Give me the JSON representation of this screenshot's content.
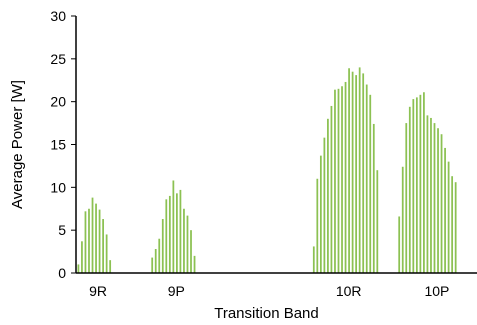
{
  "chart_data": {
    "type": "bar",
    "xlabel": "Transition Band",
    "ylabel": "Average Power [W]",
    "ylim": [
      0,
      30
    ],
    "yticks": [
      0,
      5,
      10,
      15,
      20,
      25,
      30
    ],
    "x_range": [
      0,
      100
    ],
    "bar_color": "#8cc152",
    "grid": false,
    "legend": "none",
    "category_labels": [
      {
        "label": "9R",
        "x": 5.5
      },
      {
        "label": "9P",
        "x": 25
      },
      {
        "label": "10R",
        "x": 68
      },
      {
        "label": "10P",
        "x": 90
      }
    ],
    "groups": [
      {
        "name": "9R",
        "x_start": 0.6,
        "x_step": 0.88,
        "values": [
          1.0,
          3.7,
          7.2,
          7.5,
          8.8,
          8.1,
          7.4,
          6.3,
          4.5,
          1.5
        ]
      },
      {
        "name": "9P",
        "x_start": 19.0,
        "x_step": 0.88,
        "values": [
          1.8,
          2.8,
          4.0,
          6.3,
          8.6,
          9.0,
          10.8,
          9.3,
          9.7,
          7.5,
          6.7,
          5.0,
          2.0
        ]
      },
      {
        "name": "10R",
        "x_start": 59.3,
        "x_step": 0.88,
        "values": [
          3.1,
          11.0,
          13.7,
          15.8,
          18.0,
          19.5,
          21.4,
          21.5,
          21.8,
          22.3,
          23.9,
          23.5,
          23.1,
          24.0,
          23.3,
          22.0,
          20.8,
          17.4,
          12.0
        ]
      },
      {
        "name": "10P",
        "x_start": 80.6,
        "x_step": 0.88,
        "values": [
          6.6,
          12.4,
          17.5,
          19.4,
          20.3,
          20.5,
          20.8,
          21.1,
          18.4,
          18.1,
          17.5,
          16.9,
          16.2,
          14.6,
          13.0,
          11.3,
          10.6
        ]
      }
    ]
  }
}
